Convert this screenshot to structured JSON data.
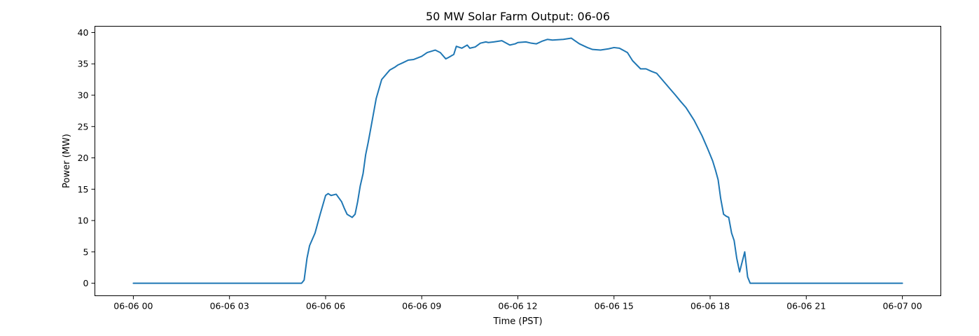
{
  "chart_data": {
    "type": "line",
    "title": "50 MW Solar Farm Output: 06-06",
    "xlabel": "Time (PST)",
    "ylabel": "Power (MW)",
    "x_unit": "hours",
    "xlim": [
      -1.2,
      25.2
    ],
    "ylim": [
      -2,
      41
    ],
    "x_ticks": [
      {
        "value": 0,
        "label": "06-06 00"
      },
      {
        "value": 3,
        "label": "06-06 03"
      },
      {
        "value": 6,
        "label": "06-06 06"
      },
      {
        "value": 9,
        "label": "06-06 09"
      },
      {
        "value": 12,
        "label": "06-06 12"
      },
      {
        "value": 15,
        "label": "06-06 15"
      },
      {
        "value": 18,
        "label": "06-06 18"
      },
      {
        "value": 21,
        "label": "06-06 21"
      },
      {
        "value": 24,
        "label": "06-07 00"
      }
    ],
    "y_ticks": [
      0,
      5,
      10,
      15,
      20,
      25,
      30,
      35,
      40
    ],
    "grid": false,
    "legend": "none",
    "series": [
      {
        "color": "#1f77b4",
        "x": [
          0,
          5.25,
          5.33,
          5.42,
          5.5,
          5.67,
          5.83,
          6.0,
          6.08,
          6.17,
          6.33,
          6.5,
          6.58,
          6.67,
          6.83,
          6.92,
          7.0,
          7.08,
          7.17,
          7.25,
          7.33,
          7.42,
          7.58,
          7.75,
          8.0,
          8.17,
          8.25,
          8.42,
          8.58,
          8.75,
          9.0,
          9.17,
          9.42,
          9.58,
          9.75,
          9.83,
          10.0,
          10.08,
          10.25,
          10.42,
          10.5,
          10.67,
          10.83,
          11.0,
          11.08,
          11.25,
          11.5,
          11.75,
          11.92,
          12.0,
          12.25,
          12.42,
          12.58,
          12.75,
          12.92,
          13.08,
          13.42,
          13.67,
          13.75,
          13.92,
          14.17,
          14.33,
          14.58,
          14.83,
          15.0,
          15.17,
          15.42,
          15.58,
          15.83,
          16.0,
          16.17,
          16.33,
          16.5,
          16.75,
          16.92,
          17.08,
          17.25,
          17.5,
          17.75,
          17.92,
          18.0,
          18.08,
          18.17,
          18.25,
          18.33,
          18.42,
          18.5,
          18.58,
          18.67,
          18.75,
          18.83,
          18.92,
          19.08,
          19.17,
          19.25,
          20,
          21,
          22,
          23,
          24
        ],
        "y": [
          0,
          0,
          0.5,
          4,
          6,
          8,
          11,
          14,
          14.3,
          14,
          14.2,
          13,
          12,
          11,
          10.5,
          11,
          13,
          15.5,
          17.5,
          20.5,
          22.5,
          25,
          29.5,
          32.5,
          34,
          34.5,
          34.8,
          35.2,
          35.6,
          35.7,
          36.2,
          36.8,
          37.2,
          36.8,
          35.8,
          36,
          36.5,
          37.8,
          37.5,
          38,
          37.5,
          37.7,
          38.3,
          38.5,
          38.4,
          38.5,
          38.7,
          38,
          38.2,
          38.4,
          38.5,
          38.3,
          38.2,
          38.6,
          38.9,
          38.8,
          38.9,
          39.1,
          38.8,
          38.2,
          37.6,
          37.3,
          37.2,
          37.4,
          37.6,
          37.5,
          36.8,
          35.5,
          34.2,
          34.2,
          33.8,
          33.5,
          32.5,
          31,
          30,
          29,
          28,
          26,
          23.5,
          21.5,
          20.5,
          19.5,
          18,
          16.5,
          13.5,
          11,
          10.7,
          10.5,
          8,
          6.8,
          4,
          1.8,
          5,
          1,
          0,
          0,
          0,
          0,
          0,
          0
        ]
      }
    ]
  }
}
